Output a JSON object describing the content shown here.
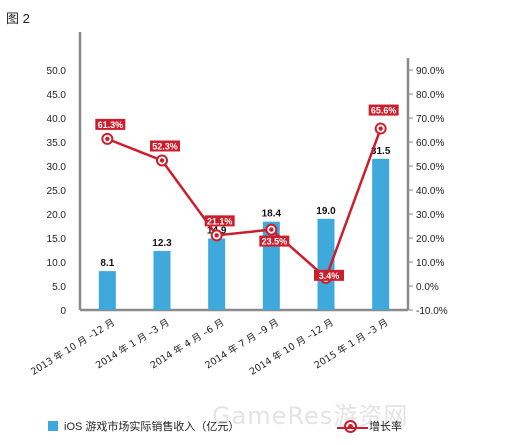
{
  "figure_label": "图 2",
  "watermark": "GameRes游资网",
  "colors": {
    "bar": "#3fa9dc",
    "line": "#cc1e2c",
    "axis": "#8a8a8a"
  },
  "chart_data": {
    "type": "bar",
    "categories": [
      "2013 年 10 月 –12 月",
      "2014 年 1 月 –3 月",
      "2014 年 4 月 –6 月",
      "2014 年 7 月 –9 月",
      "2014 年 10 月 –12 月",
      "2015 年 1 月 –3 月"
    ],
    "series": [
      {
        "name": "iOS 游戏市场实际销售收入（亿元）",
        "type": "bar",
        "axis": "left",
        "values": [
          8.1,
          12.3,
          14.9,
          18.4,
          19.0,
          31.5
        ],
        "labels": [
          "8.1",
          "12.3",
          "14.9",
          "18.4",
          "19.0",
          "31.5"
        ]
      },
      {
        "name": "增长率",
        "type": "line",
        "axis": "right",
        "values": [
          61.3,
          52.3,
          21.1,
          23.5,
          3.4,
          65.6
        ],
        "labels": [
          "61.3%",
          "52.3%",
          "21.1%",
          "23.5%",
          "3.4%",
          "65.6%"
        ]
      }
    ],
    "y_left": {
      "ylim": [
        0,
        50
      ],
      "ticks": [
        "0",
        "5.0",
        "10.0",
        "15.0",
        "20.0",
        "25.0",
        "30.0",
        "35.0",
        "40.0",
        "45.0",
        "50.0"
      ]
    },
    "y_right": {
      "ylim": [
        -10,
        90
      ],
      "ticks": [
        "-10.0%",
        "0.0%",
        "10.0%",
        "20.0%",
        "30.0%",
        "40.0%",
        "50.0%",
        "60.0%",
        "70.0%",
        "80.0%",
        "90.0%"
      ]
    },
    "grid": false,
    "legend": "bottom"
  }
}
